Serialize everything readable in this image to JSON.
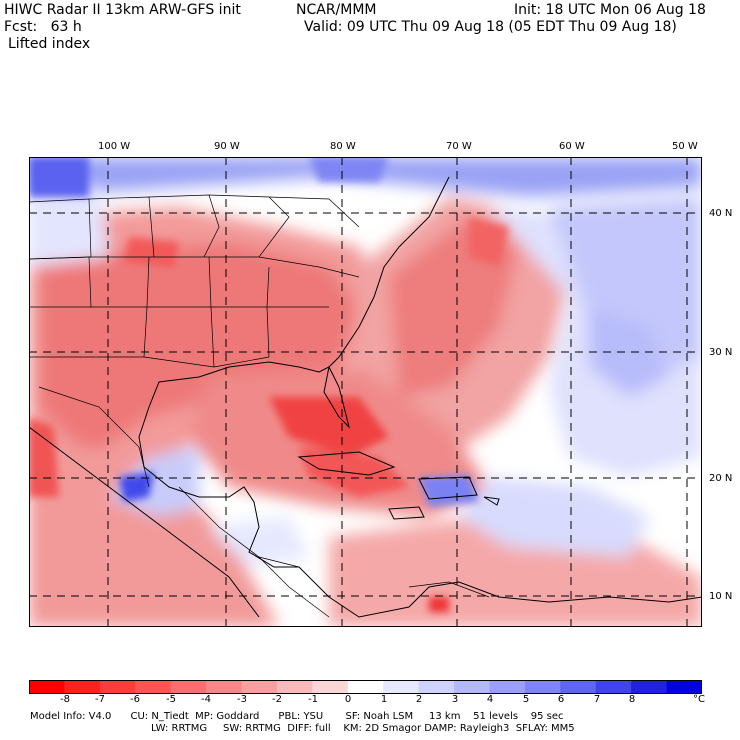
{
  "header": {
    "title": "HIWC Radar II 13km ARW-GFS init",
    "org": "NCAR/MMM",
    "init": "Init: 18 UTC Mon 06 Aug 18",
    "fcst": "Fcst:   63 h",
    "valid": "Valid: 09 UTC Thu 09 Aug 18 (05 EDT Thu 09 Aug 18)",
    "field": "Lifted index"
  },
  "map": {
    "lon_labels": [
      "100 W",
      "90 W",
      "80 W",
      "70 W",
      "60 W",
      "50 W"
    ],
    "lat_labels": [
      "40 N",
      "30 N",
      "20 N",
      "10 N"
    ],
    "colors": {
      "strong_negative": "#ff1f1f",
      "moderate_negative": "#f26a6a",
      "weak_negative": "#f7b3b3",
      "neutral": "#ffffff",
      "weak_positive": "#d5d8fb",
      "moderate_positive": "#8f96f2",
      "strong_positive": "#2222e6"
    }
  },
  "legend": {
    "unit": "°C",
    "labels": [
      "-8",
      "-7",
      "-6",
      "-5",
      "-4",
      "-3",
      "-2",
      "-1",
      "0",
      "1",
      "2",
      "3",
      "4",
      "5",
      "6",
      "7",
      "8"
    ],
    "colors": [
      "#ff0000",
      "#ff2020",
      "#ff3c3c",
      "#fb5555",
      "#f76f6f",
      "#f68888",
      "#f6a0a0",
      "#f8baba",
      "#fad6d6",
      "#ffffff",
      "#e6e8fe",
      "#cfd2fd",
      "#b4b9fb",
      "#9aa0f8",
      "#7e85f4",
      "#5f66ef",
      "#3f45ea",
      "#2020e6",
      "#0000e0"
    ]
  },
  "footer": {
    "line1": "Model Info: V4.0      CU: N_Tiedt  MP: Goddard      PBL: YSU       SF: Noah LSM     13 km    51 levels    95 sec",
    "line2": "LW: RRTMG     SW: RRTMG  DIFF: full    KM: 2D Smagor DAMP: Rayleigh3  SFLAY: MM5"
  }
}
